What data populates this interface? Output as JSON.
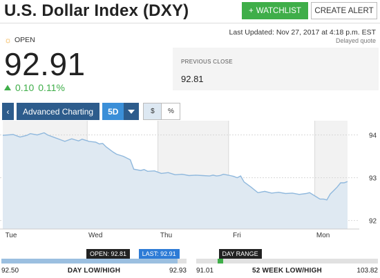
{
  "header": {
    "title": "U.S. Dollar Index (DXY)",
    "watchlist_label": "WATCHLIST",
    "create_alert_label": "CREATE ALERT"
  },
  "quote": {
    "status": "OPEN",
    "last_updated": "Last Updated: Nov 27, 2017 at 4:18 p.m. EST",
    "delayed": "Delayed quote",
    "price": "92.91",
    "change": "0.10",
    "change_pct": "0.11%",
    "previous_close_label": "PREVIOUS CLOSE",
    "previous_close": "92.81"
  },
  "toolbar": {
    "back_icon": "chevron-left-icon",
    "advanced_charting": "Advanced Charting",
    "range": "5D",
    "toggle_dollar": "$",
    "toggle_percent": "%"
  },
  "chart_data": {
    "type": "line",
    "x_tick_labels": [
      "Tue",
      "Wed",
      "Thu",
      "Fri",
      "Mon"
    ],
    "y_tick_labels": [
      "94",
      "93",
      "92"
    ],
    "ylim": [
      91.8,
      94.3
    ],
    "grid": true,
    "series": [
      {
        "color": "#8fb8dd",
        "x": [
          0,
          0.03,
          0.05,
          0.07,
          0.08,
          0.1,
          0.12,
          0.13,
          0.15,
          0.17,
          0.18,
          0.2,
          0.22,
          0.23,
          0.25,
          0.27,
          0.28,
          0.29,
          0.3,
          0.32,
          0.33,
          0.35,
          0.37,
          0.38,
          0.4,
          0.41,
          0.42,
          0.44,
          0.46,
          0.48,
          0.5,
          0.52,
          0.54,
          0.56,
          0.58,
          0.6,
          0.61,
          0.62,
          0.63,
          0.64,
          0.66,
          0.67,
          0.68,
          0.69,
          0.7,
          0.72,
          0.74,
          0.76,
          0.78,
          0.8,
          0.82,
          0.84,
          0.86,
          0.88,
          0.89,
          0.9,
          0.91,
          0.92,
          0.93,
          0.94,
          0.95,
          0.96,
          0.97,
          0.98,
          0.99,
          1.0
        ],
        "values": [
          93.99,
          94.01,
          93.95,
          93.99,
          94.03,
          94.0,
          94.05,
          94.0,
          93.94,
          93.88,
          93.85,
          93.91,
          93.86,
          93.9,
          93.85,
          93.83,
          93.79,
          93.8,
          93.72,
          93.6,
          93.55,
          93.5,
          93.42,
          93.2,
          93.17,
          93.19,
          93.15,
          93.16,
          93.1,
          93.12,
          93.07,
          93.08,
          93.05,
          93.06,
          93.05,
          93.04,
          93.06,
          93.04,
          93.05,
          93.08,
          93.05,
          93.03,
          93.0,
          93.04,
          92.9,
          92.78,
          92.65,
          92.68,
          92.64,
          92.66,
          92.63,
          92.64,
          92.61,
          92.63,
          92.65,
          92.6,
          92.55,
          92.5,
          92.5,
          92.48,
          92.62,
          92.7,
          92.78,
          92.88,
          92.88,
          92.91
        ]
      }
    ]
  },
  "day_range": {
    "low": "92.50",
    "high": "92.93",
    "label": "DAY LOW/HIGH",
    "open_tag": "OPEN: 92.81",
    "last_tag": "LAST: 92.91",
    "open_pos": 0.72,
    "last_pos": 0.95
  },
  "week52_range": {
    "low": "91.01",
    "high": "103.82",
    "label": "52 WEEK LOW/HIGH",
    "tag": "DAY RANGE",
    "day_pos_from": 0.116,
    "day_pos_to": 0.15
  },
  "colors": {
    "accent_green": "#3fae49",
    "button_blue": "#2d5c8c",
    "active_blue": "#3b8fd8",
    "line_blue": "#8fb8dd",
    "area_fill": "#dfe9f2"
  }
}
